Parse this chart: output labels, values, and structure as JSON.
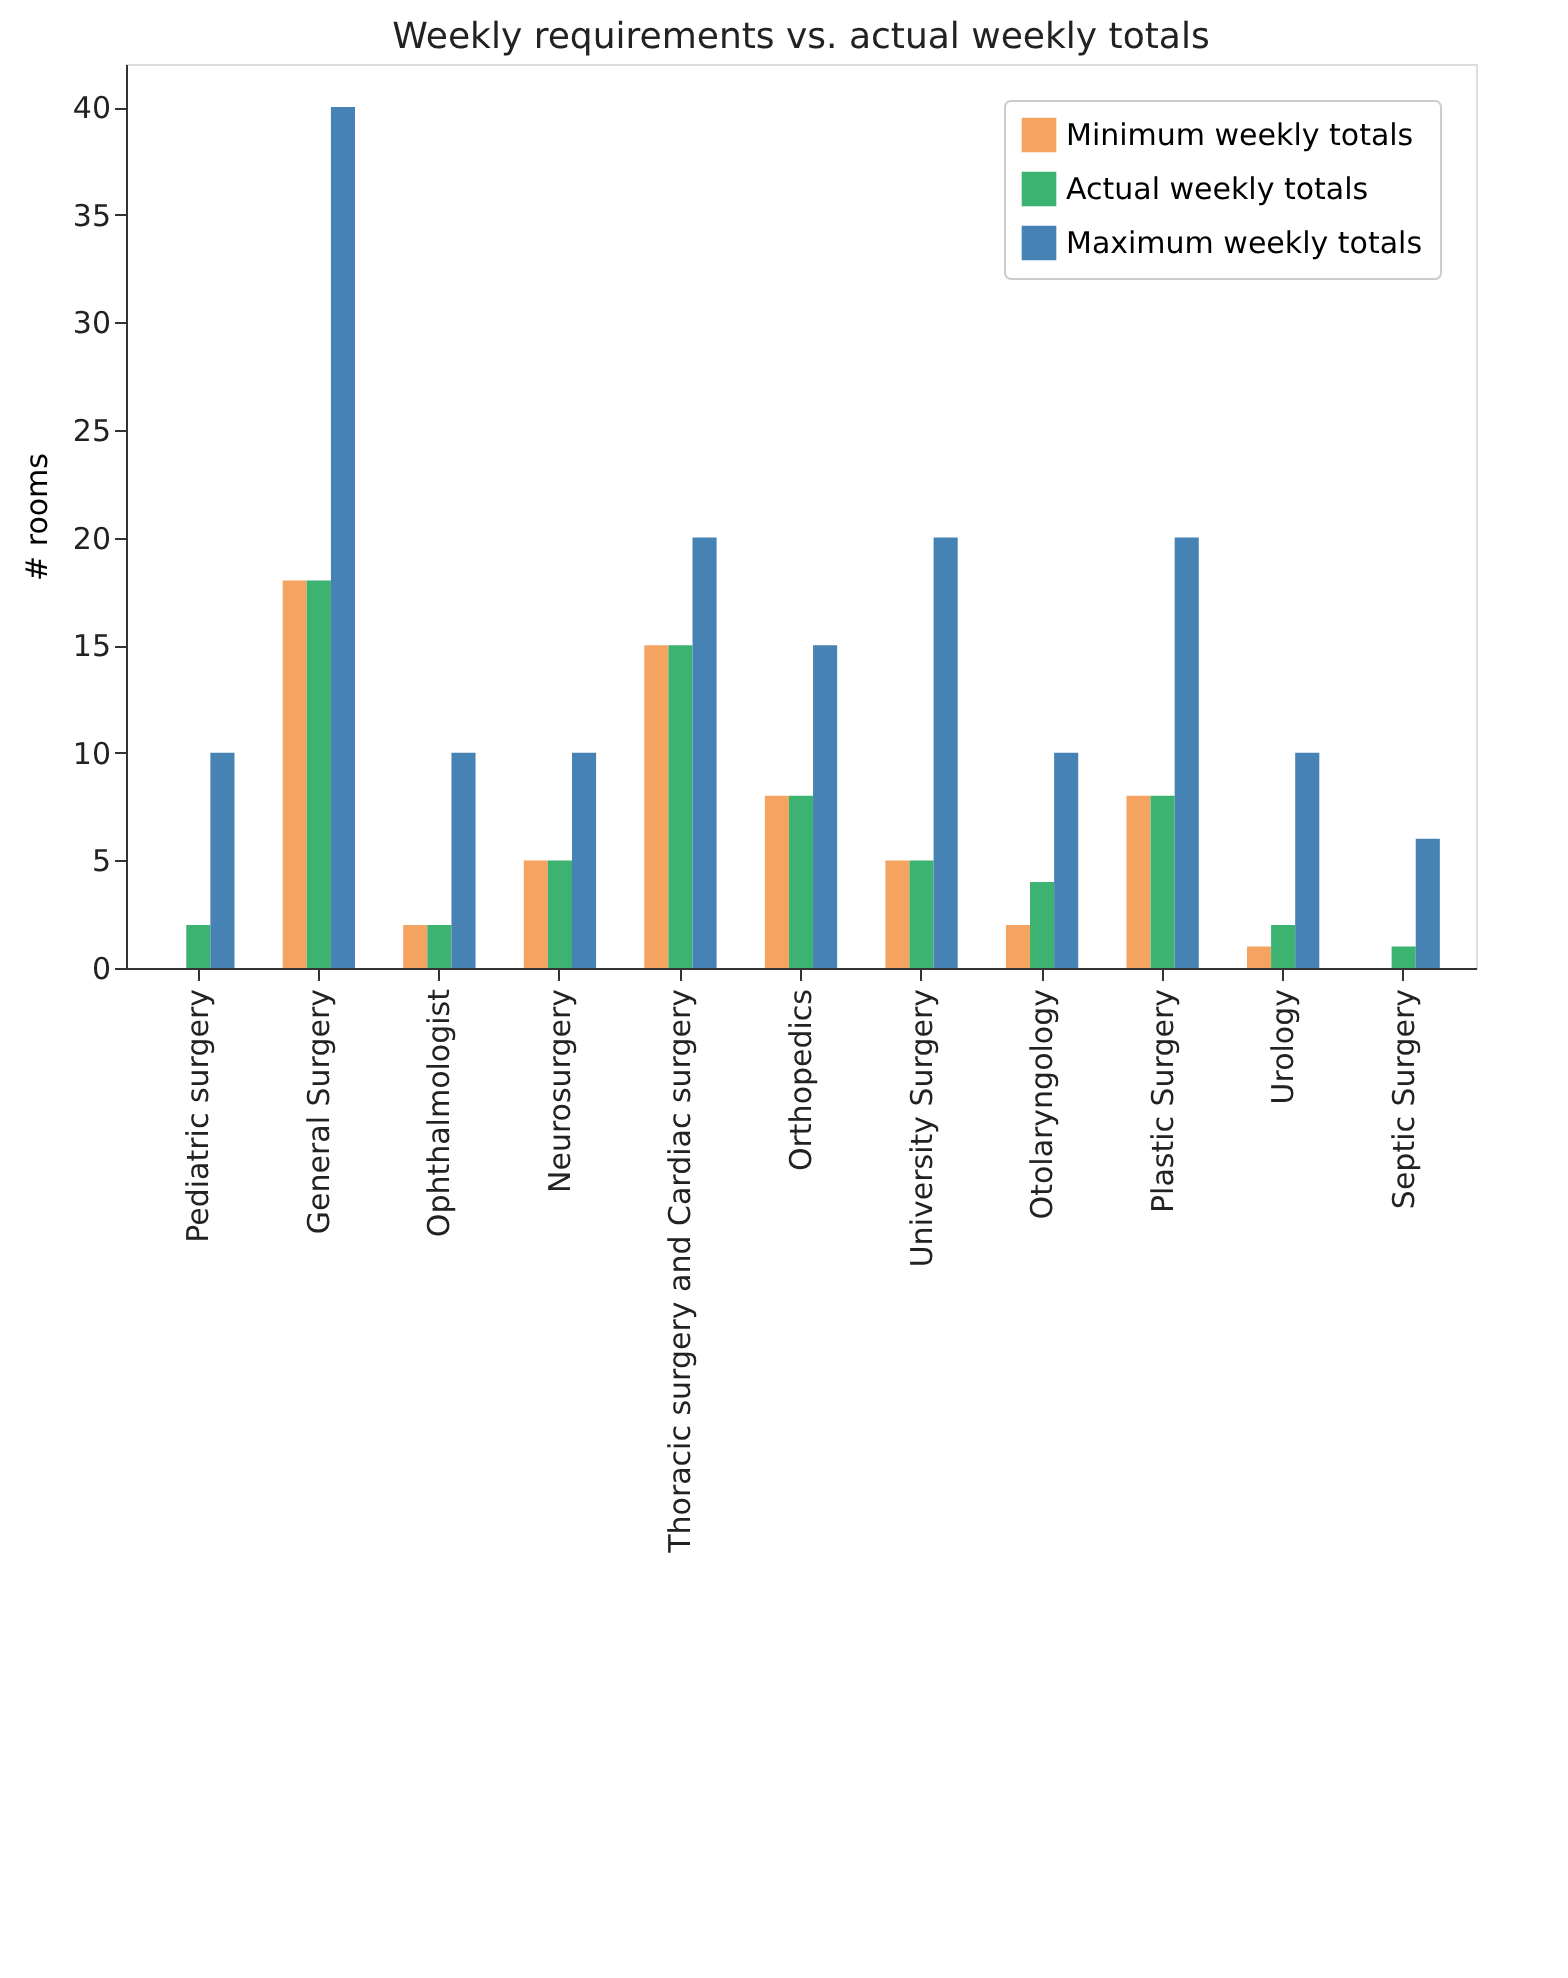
{
  "chart_data": {
    "type": "bar",
    "title": "Weekly requirements vs. actual weekly totals",
    "ylabel": "# rooms",
    "categories": [
      "Pediatric surgery",
      "General Surgery",
      "Ophthalmologist",
      "Neurosurgery",
      "Thoracic surgery and Cardiac surgery",
      "Orthopedics",
      "University Surgery",
      "Otolaryngology",
      "Plastic Surgery",
      "Urology",
      "Septic Surgery"
    ],
    "series": [
      {
        "name": "Minimum weekly totals",
        "color": "#f4a460",
        "values": [
          0,
          18,
          2,
          5,
          15,
          8,
          5,
          2,
          8,
          1,
          0
        ]
      },
      {
        "name": "Actual weekly totals",
        "color": "#3cb371",
        "values": [
          2,
          18,
          2,
          5,
          15,
          8,
          5,
          4,
          8,
          2,
          1
        ]
      },
      {
        "name": "Maximum weekly totals",
        "color": "#4682b4",
        "values": [
          10,
          40,
          10,
          10,
          20,
          15,
          20,
          10,
          20,
          10,
          6
        ]
      }
    ],
    "ylim": [
      0,
      42
    ],
    "yticks": [
      0,
      5,
      10,
      15,
      20,
      25,
      30,
      35,
      40
    ],
    "grid": false,
    "legend": "top right"
  }
}
